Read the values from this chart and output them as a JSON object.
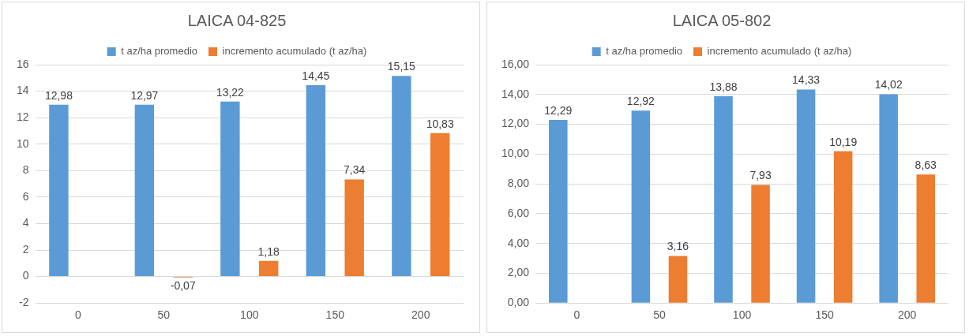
{
  "chart_data": [
    {
      "type": "bar",
      "title": "LAICA 04-825",
      "categories": [
        "0",
        "50",
        "100",
        "150",
        "200"
      ],
      "series": [
        {
          "name": "t az/ha promedio",
          "color": "#5b9bd5",
          "values": [
            12.98,
            12.97,
            13.22,
            14.45,
            15.15
          ],
          "value_labels": [
            "12,98",
            "12,97",
            "13,22",
            "14,45",
            "15,15"
          ]
        },
        {
          "name": "incremento acumulado (t az/ha)",
          "color": "#ed7d31",
          "values": [
            null,
            -0.07,
            1.18,
            7.34,
            10.83
          ],
          "value_labels": [
            null,
            "-0,07",
            "1,18",
            "7,34",
            "10,83"
          ]
        }
      ],
      "ylim": [
        -2,
        16
      ],
      "yticks": [
        -2,
        0,
        2,
        4,
        6,
        8,
        10,
        12,
        14,
        16
      ],
      "grid": "y",
      "legend": "top"
    },
    {
      "type": "bar",
      "title": "LAICA 05-802",
      "categories": [
        "0",
        "50",
        "100",
        "150",
        "200"
      ],
      "series": [
        {
          "name": "t az/ha promedio",
          "color": "#5b9bd5",
          "values": [
            12.29,
            12.92,
            13.88,
            14.33,
            14.02
          ],
          "value_labels": [
            "12,29",
            "12,92",
            "13,88",
            "14,33",
            "14,02"
          ]
        },
        {
          "name": "incremento acumulado (t az/ha)",
          "color": "#ed7d31",
          "values": [
            null,
            3.16,
            7.93,
            10.19,
            8.63
          ],
          "value_labels": [
            null,
            "3,16",
            "7,93",
            "10,19",
            "8,63"
          ]
        }
      ],
      "ylim": [
        0,
        16
      ],
      "yticks": [
        {
          "value": 0,
          "label": "0,00"
        },
        {
          "value": 2,
          "label": "2,00"
        },
        {
          "value": 4,
          "label": "4,00"
        },
        {
          "value": 6,
          "label": "6,00"
        },
        {
          "value": 8,
          "label": "8,00"
        },
        {
          "value": 10,
          "label": "10,00"
        },
        {
          "value": 12,
          "label": "12,00"
        },
        {
          "value": 14,
          "label": "14,00"
        },
        {
          "value": 16,
          "label": "16,00"
        }
      ],
      "grid": "y",
      "legend": "top"
    }
  ]
}
